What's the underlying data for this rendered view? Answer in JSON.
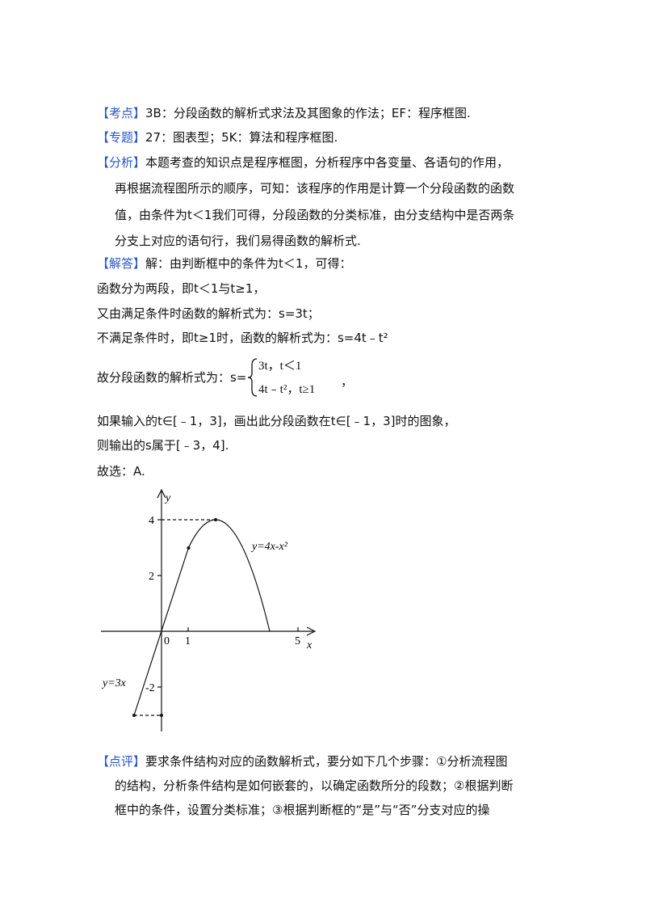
{
  "kaodian": {
    "label": "【考点】",
    "text": "3B：分段函数的解析式求法及其图象的作法；EF：程序框图."
  },
  "zhuanti": {
    "label": "【专题】",
    "text": "27：图表型；5K：算法和程序框图."
  },
  "fenxi": {
    "label": "【分析】",
    "lines": [
      "本题考查的知识点是程序框图，分析程序中各变量、各语句的作用，",
      "再根据流程图所示的顺序，可知：该程序的作用是计算一个分段函数的函数",
      "值，由条件为t＜1我们可得，分段函数的分类标准，由分支结构中是否两条",
      "分支上对应的语句行，我们易得函数的解析式."
    ]
  },
  "jieda": {
    "label": "【解答】",
    "first": "解：由判断框中的条件为t＜1，可得：",
    "lines": [
      "函数分为两段，即t＜1与t≥1，",
      "又由满足条件时函数的解析式为：s=3t；",
      "不满足条件时，即t≥1时，函数的解析式为：s=4t﹣t²"
    ],
    "piecewise": {
      "prefix": "故分段函数的解析式为：s=",
      "cases": [
        "3t，t＜1",
        "4t﹣t²，t≥1"
      ],
      "suffix": "，"
    },
    "after": [
      "如果输入的t∈[﹣1，3]，画出此分段函数在t∈[﹣1，3]时的图象，",
      "则输出的s属于[﹣3，4].",
      "故选：A."
    ]
  },
  "figure": {
    "y_axis": "y",
    "x_axis": "x",
    "y_labels": [
      "4",
      "2",
      "-2"
    ],
    "x_labels": [
      "0",
      "1",
      "5"
    ],
    "curve_label": "y=4x-x²",
    "line_label": "y=3x"
  },
  "dianping": {
    "label": "【点评】",
    "lines": [
      "要求条件结构对应的函数解析式，要分如下几个步骤：①分析流程图",
      "的结构，分析条件结构是如何嵌套的，以确定函数所分的段数；②根据判断",
      "框中的条件，设置分类标准；③根据判断框的“是”与“否”分支对应的操"
    ]
  }
}
